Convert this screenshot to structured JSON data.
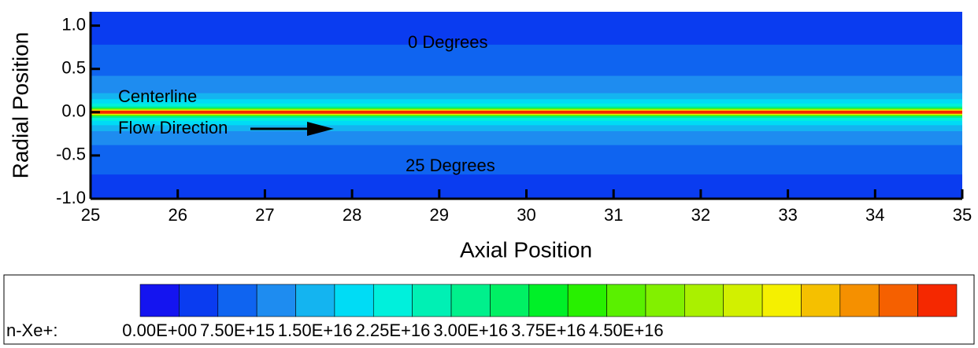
{
  "chart_data": {
    "type": "contour",
    "xlabel": "Axial Position",
    "ylabel": "Radial Position",
    "xlim": [
      25,
      35
    ],
    "ylim": [
      -1,
      1.16
    ],
    "xticks": [
      25,
      26,
      27,
      28,
      29,
      30,
      31,
      32,
      33,
      34,
      35
    ],
    "yticks": [
      {
        "value": -1,
        "label": "-1.0"
      },
      {
        "value": -0.5,
        "label": "-0.5"
      },
      {
        "value": 0,
        "label": "0.0"
      },
      {
        "value": 0.5,
        "label": "0.5"
      },
      {
        "value": 1,
        "label": "1.0"
      }
    ],
    "bands": [
      {
        "value": 3750000000000000.0,
        "upper": 1.16,
        "lower": -1
      },
      {
        "value": 7500000000000000.0,
        "upper": 0.78,
        "lower": -0.72
      },
      {
        "value": 1.125e+16,
        "upper": 0.42,
        "lower": -0.38
      },
      {
        "value": 1.5e+16,
        "upper": 0.22,
        "lower": -0.22
      },
      {
        "value": 1.875e+16,
        "upper": 0.15,
        "lower": -0.15
      },
      {
        "value": 2.25e+16,
        "upper": 0.1,
        "lower": -0.1
      },
      {
        "value": 3e+16,
        "upper": 0.065,
        "lower": -0.065
      },
      {
        "value": 4.5e+16,
        "upper": 0.045,
        "lower": -0.045
      },
      {
        "value": 6e+16,
        "upper": 0.03,
        "lower": -0.03
      },
      {
        "value": 7.5e+16,
        "upper": 0.018,
        "lower": -0.018
      }
    ],
    "annotations": [
      "0 Degrees",
      "Centerline",
      "Flow Direction",
      "25 Degrees"
    ],
    "colorbar": {
      "label": "n-Xe+:",
      "clim": [
        -1875000000000000.0,
        7.6875e+16
      ],
      "colors": [
        "#1414f0",
        "#0a3cf0",
        "#0f64f0",
        "#1e8cf0",
        "#14b4f0",
        "#00dcf5",
        "#00f0dc",
        "#00f0b4",
        "#00f08c",
        "#00f064",
        "#00f028",
        "#28f000",
        "#5af000",
        "#82f000",
        "#aaf000",
        "#d2f000",
        "#f5f000",
        "#f5c000",
        "#f59000",
        "#f56000",
        "#f52800"
      ],
      "ticks": [
        {
          "value": 0,
          "label": "0.00E+00"
        },
        {
          "value": 7500000000000000.0,
          "label": "7.50E+15"
        },
        {
          "value": 1.5e+16,
          "label": "1.50E+16"
        },
        {
          "value": 2.25e+16,
          "label": "2.25E+16"
        },
        {
          "value": 3e+16,
          "label": "3.00E+16"
        },
        {
          "value": 3.75e+16,
          "label": "3.75E+16"
        },
        {
          "value": 4.5e+16,
          "label": "4.50E+16"
        }
      ]
    }
  }
}
